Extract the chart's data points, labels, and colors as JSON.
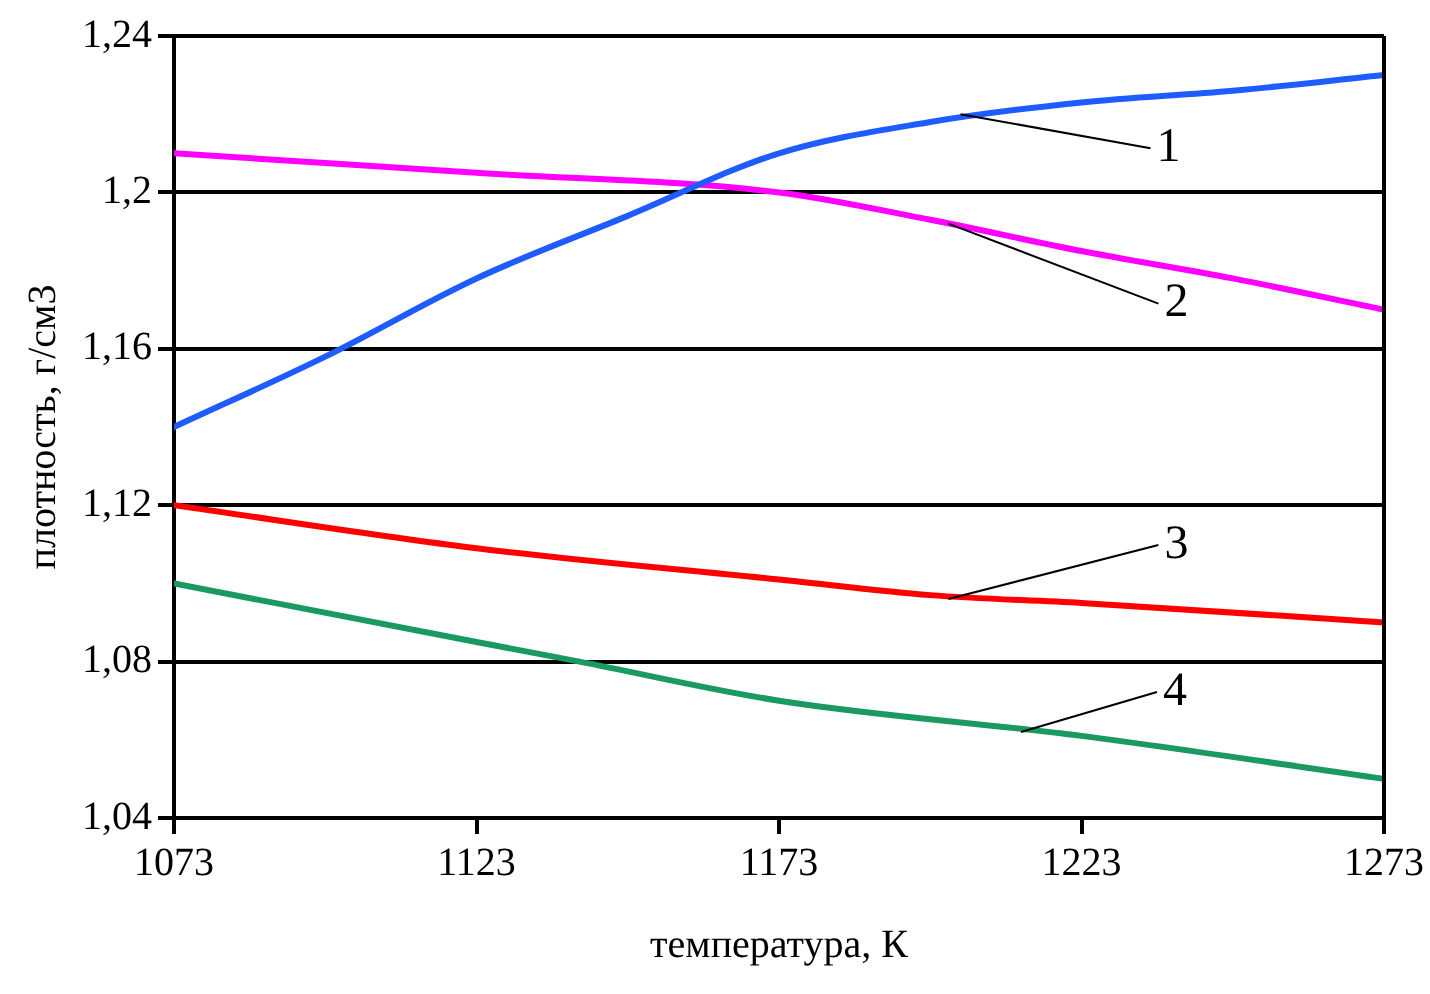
{
  "chart_data": {
    "type": "line",
    "xlabel": "температура, К",
    "ylabel": "плотность, г/см3",
    "xlim": [
      1073,
      1273
    ],
    "xticks": [
      1073,
      1123,
      1173,
      1223,
      1273
    ],
    "ylim": [
      1.04,
      1.24
    ],
    "yticks": [
      {
        "value": 1.04,
        "label": "1,04"
      },
      {
        "value": 1.08,
        "label": "1,08"
      },
      {
        "value": 1.12,
        "label": "1,12"
      },
      {
        "value": 1.16,
        "label": "1,16"
      },
      {
        "value": 1.2,
        "label": "1,2"
      },
      {
        "value": 1.24,
        "label": "1,24"
      }
    ],
    "grid": "y",
    "legend": false,
    "marker": "none",
    "line_style": "solid",
    "series": [
      {
        "color": "#1f5cff",
        "x": [
          1073,
          1098,
          1123,
          1148,
          1173,
          1198,
          1223,
          1248,
          1273
        ],
        "values": [
          1.14,
          1.158,
          1.178,
          1.194,
          1.21,
          1.218,
          1.223,
          1.226,
          1.23
        ]
      },
      {
        "color": "#ff00ff",
        "x": [
          1073,
          1123,
          1173,
          1198,
          1223,
          1248,
          1273
        ],
        "values": [
          1.21,
          1.205,
          1.2,
          1.193,
          1.185,
          1.178,
          1.17
        ]
      },
      {
        "color": "#ff0000",
        "x": [
          1073,
          1123,
          1173,
          1198,
          1223,
          1273
        ],
        "values": [
          1.12,
          1.109,
          1.101,
          1.097,
          1.095,
          1.09
        ]
      },
      {
        "color": "#1a9a60",
        "x": [
          1073,
          1123,
          1140,
          1173,
          1223,
          1273
        ],
        "values": [
          1.1,
          1.085,
          1.08,
          1.07,
          1.061,
          1.05
        ]
      }
    ],
    "annotations": [
      {
        "text": "1",
        "x": 1203,
        "y": 1.22
      },
      {
        "text": "2",
        "x": 1201,
        "y": 1.192
      },
      {
        "text": "3",
        "x": 1201,
        "y": 1.096
      },
      {
        "text": "4",
        "x": 1213,
        "y": 1.062
      }
    ]
  }
}
